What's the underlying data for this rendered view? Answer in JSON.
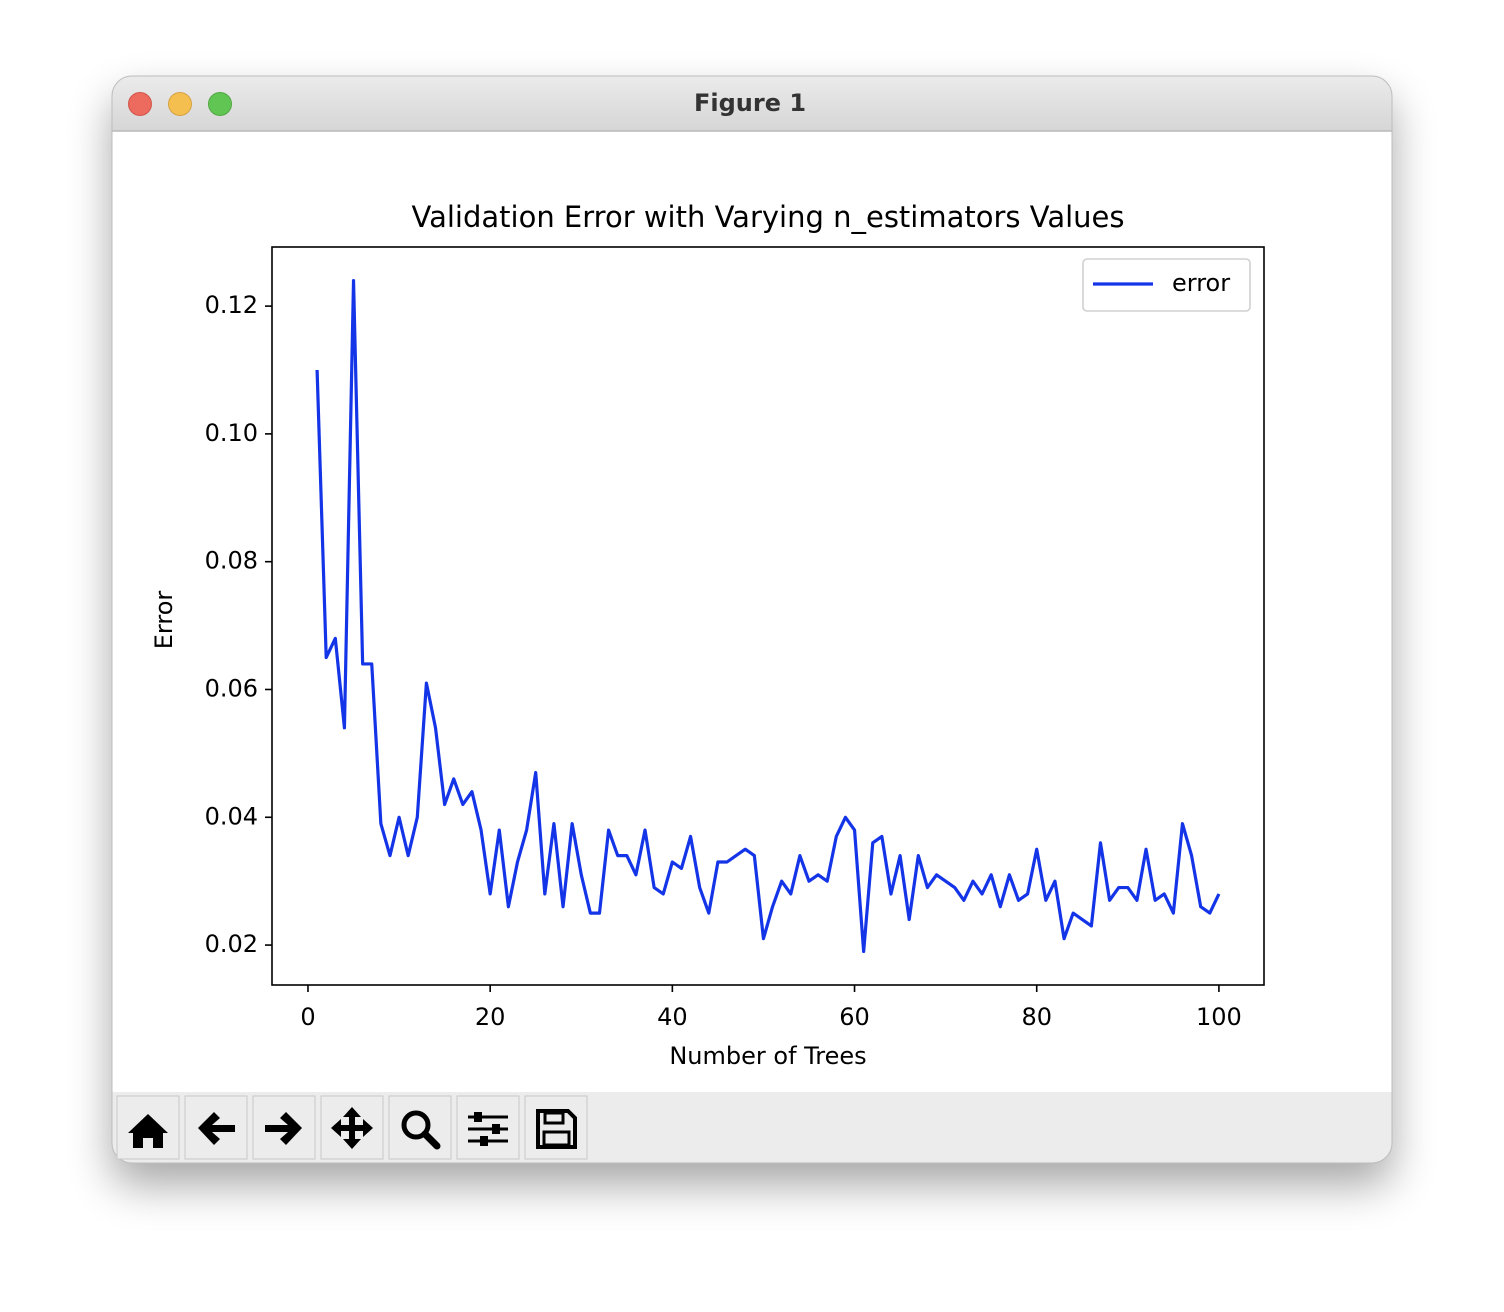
{
  "window": {
    "title": "Figure 1"
  },
  "chart_data": {
    "type": "line",
    "title": "Validation Error with Varying n_estimators Values",
    "x_label": "Number of Trees",
    "y_label": "Error",
    "x": [
      1,
      2,
      3,
      4,
      5,
      6,
      7,
      8,
      9,
      10,
      11,
      12,
      13,
      14,
      15,
      16,
      17,
      18,
      19,
      20,
      21,
      22,
      23,
      24,
      25,
      26,
      27,
      28,
      29,
      30,
      31,
      32,
      33,
      34,
      35,
      36,
      37,
      38,
      39,
      40,
      41,
      42,
      43,
      44,
      45,
      46,
      47,
      48,
      49,
      50,
      51,
      52,
      53,
      54,
      55,
      56,
      57,
      58,
      59,
      60,
      61,
      62,
      63,
      64,
      65,
      66,
      67,
      68,
      69,
      70,
      71,
      72,
      73,
      74,
      75,
      76,
      77,
      78,
      79,
      80,
      81,
      82,
      83,
      84,
      85,
      86,
      87,
      88,
      89,
      90,
      91,
      92,
      93,
      94,
      95,
      96,
      97,
      98,
      99,
      100
    ],
    "series": [
      {
        "name": "error",
        "color": "#1434e8",
        "values": [
          0.11,
          0.065,
          0.068,
          0.054,
          0.124,
          0.064,
          0.064,
          0.039,
          0.034,
          0.04,
          0.034,
          0.04,
          0.061,
          0.054,
          0.042,
          0.046,
          0.042,
          0.044,
          0.038,
          0.028,
          0.038,
          0.026,
          0.033,
          0.038,
          0.047,
          0.028,
          0.039,
          0.026,
          0.039,
          0.031,
          0.025,
          0.025,
          0.038,
          0.034,
          0.034,
          0.031,
          0.038,
          0.029,
          0.028,
          0.033,
          0.032,
          0.037,
          0.029,
          0.025,
          0.033,
          0.033,
          0.034,
          0.035,
          0.034,
          0.021,
          0.026,
          0.03,
          0.028,
          0.034,
          0.03,
          0.031,
          0.03,
          0.037,
          0.04,
          0.038,
          0.019,
          0.036,
          0.037,
          0.028,
          0.034,
          0.024,
          0.034,
          0.029,
          0.031,
          0.03,
          0.029,
          0.027,
          0.03,
          0.028,
          0.031,
          0.026,
          0.031,
          0.027,
          0.028,
          0.035,
          0.027,
          0.03,
          0.021,
          0.025,
          0.024,
          0.023,
          0.036,
          0.027,
          0.029,
          0.029,
          0.027,
          0.035,
          0.027,
          0.028,
          0.025,
          0.039,
          0.034,
          0.026,
          0.025,
          0.028
        ]
      }
    ],
    "xlim": [
      -3.95,
      104.95
    ],
    "xticks": [
      0,
      20,
      40,
      60,
      80,
      100
    ],
    "ylim": [
      0.01375,
      0.12925
    ],
    "yticks": [
      0.02,
      0.04,
      0.06,
      0.08,
      {
        "value": 0.1,
        "label": "0.10"
      },
      0.12
    ],
    "legend": "upper right"
  }
}
